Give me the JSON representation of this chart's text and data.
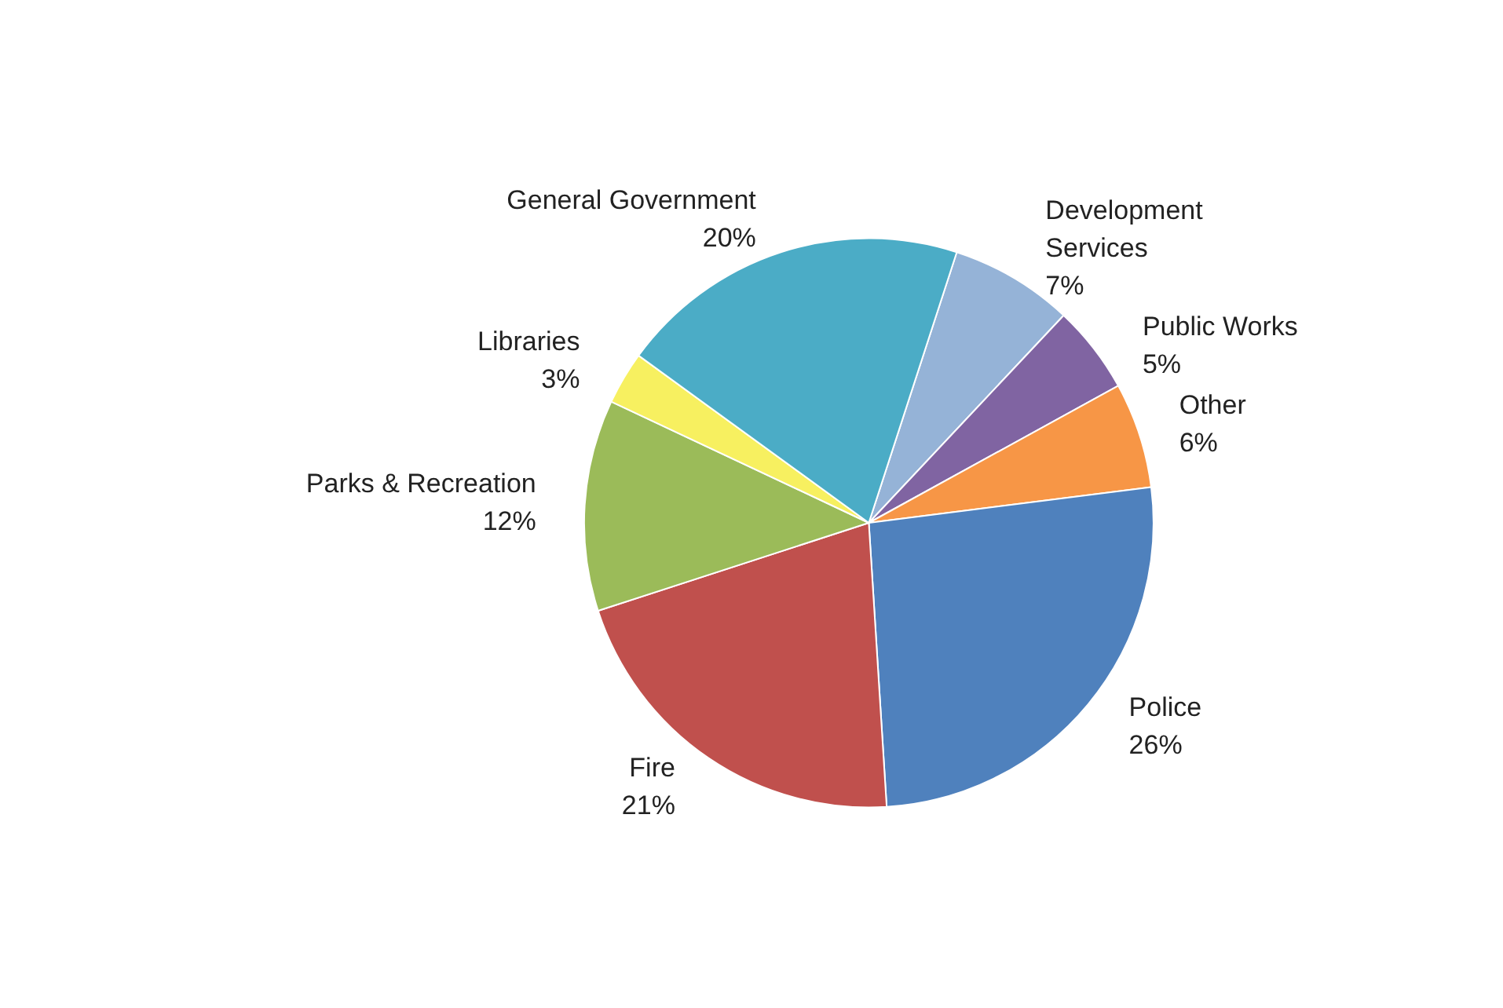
{
  "chart_data": {
    "type": "pie",
    "categories": [
      "Development Services",
      "Public Works",
      "Other",
      "Police",
      "Fire",
      "Parks & Recreation",
      "Libraries",
      "General Government"
    ],
    "values": [
      7,
      5,
      6,
      26,
      21,
      12,
      3,
      20
    ],
    "colors": [
      "#95b3d7",
      "#8064a2",
      "#f79646",
      "#4f81bd",
      "#c0504d",
      "#9bbb59",
      "#f7f060",
      "#4bacc6"
    ],
    "value_labels": [
      "7%",
      "5%",
      "6%",
      "26%",
      "21%",
      "12%",
      "3%",
      "20%"
    ],
    "legend": false
  }
}
